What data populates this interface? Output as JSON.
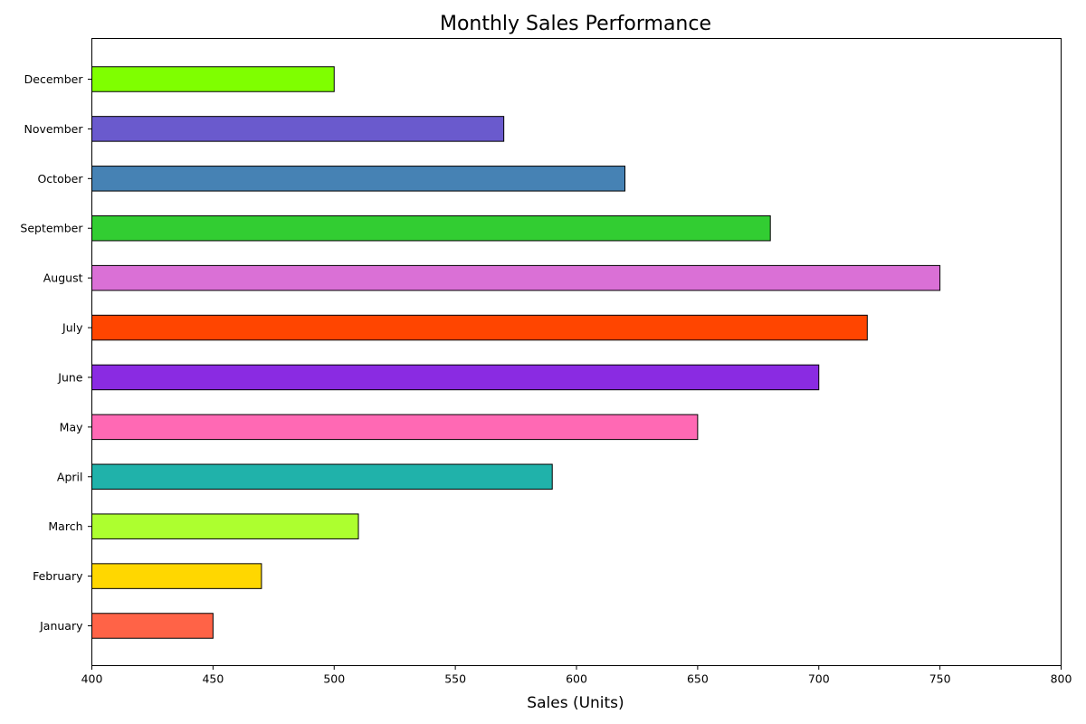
{
  "chart_data": {
    "type": "bar",
    "orientation": "horizontal",
    "title": "Monthly Sales Performance",
    "xlabel": "Sales (Units)",
    "ylabel": "",
    "xlim": [
      400,
      800
    ],
    "xticks": [
      400,
      450,
      500,
      550,
      600,
      650,
      700,
      750,
      800
    ],
    "grid": false,
    "categories": [
      "January",
      "February",
      "March",
      "April",
      "May",
      "June",
      "July",
      "August",
      "September",
      "October",
      "November",
      "December"
    ],
    "values": [
      450,
      470,
      510,
      590,
      650,
      700,
      720,
      750,
      680,
      620,
      570,
      500
    ],
    "colors": [
      "#FF6347",
      "#FFD700",
      "#ADFF2F",
      "#20B2AA",
      "#FF69B4",
      "#8A2BE2",
      "#FF4500",
      "#DA70D6",
      "#32CD32",
      "#4682B4",
      "#6A5ACD",
      "#7FFF00"
    ]
  }
}
